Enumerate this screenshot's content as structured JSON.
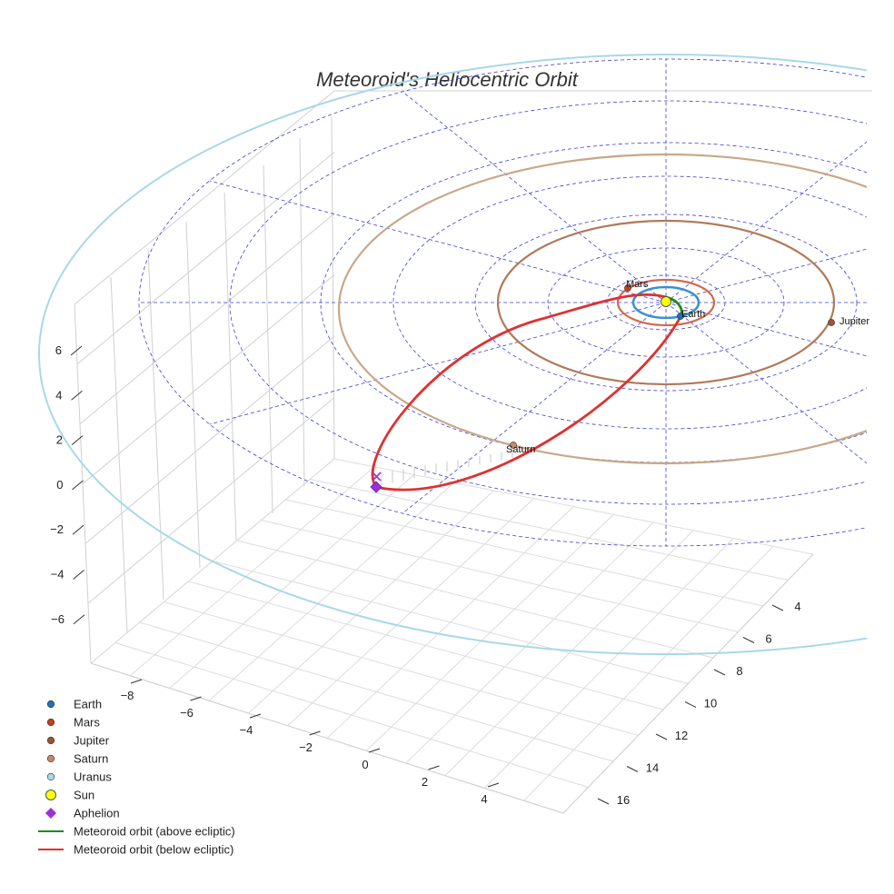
{
  "chart_data": {
    "type": "scatter3d",
    "title": "Meteoroid's Heliocentric Orbit",
    "xlabel": "",
    "ylabel": "",
    "zlabel": "",
    "x_ticks": [
      -8,
      -6,
      -4,
      -2,
      0,
      2,
      4
    ],
    "y_ticks": [
      4,
      6,
      8,
      10,
      12,
      14,
      16
    ],
    "z_ticks": [
      6,
      4,
      2,
      0,
      -2,
      -4,
      -6
    ],
    "orbits": [
      {
        "name": "Earth",
        "radius": 1.0,
        "color": "#3a8fd0"
      },
      {
        "name": "Mars",
        "radius": 1.52,
        "color": "#d06a4a"
      },
      {
        "name": "Jupiter",
        "radius": 5.2,
        "color": "#b07a5a"
      },
      {
        "name": "Saturn",
        "radius": 9.5,
        "color": "#c8a888"
      },
      {
        "name": "Uranus",
        "radius": 19.2,
        "color": "#a8d8e8"
      }
    ],
    "planet_labels": [
      {
        "name": "Mars"
      },
      {
        "name": "Earth"
      },
      {
        "name": "Jupiter"
      },
      {
        "name": "Saturn"
      }
    ],
    "legend": {
      "placement": "bottom-left",
      "items": [
        {
          "label": "Earth",
          "color": "#1f6fb4",
          "marker": "circle"
        },
        {
          "label": "Mars",
          "color": "#c0401a",
          "marker": "circle"
        },
        {
          "label": "Jupiter",
          "color": "#9a5535",
          "marker": "circle"
        },
        {
          "label": "Saturn",
          "color": "#c08a6a",
          "marker": "circle"
        },
        {
          "label": "Uranus",
          "color": "#a8d8e8",
          "marker": "circle"
        },
        {
          "label": "Sun",
          "color": "#ffff00",
          "marker": "circle-large"
        },
        {
          "label": "Aphelion",
          "color": "#9b30d9",
          "marker": "diamond"
        },
        {
          "label": "Meteoroid orbit (above ecliptic)",
          "color": "#1e8a1e",
          "marker": "line"
        },
        {
          "label": "Meteoroid orbit (below ecliptic)",
          "color": "#e03030",
          "marker": "line"
        }
      ]
    },
    "colors": {
      "grid": "#d0d0d0",
      "ecliptic_grid": "#4040d0",
      "orbit_above": "#1e8a1e",
      "orbit_below": "#e03030"
    }
  }
}
